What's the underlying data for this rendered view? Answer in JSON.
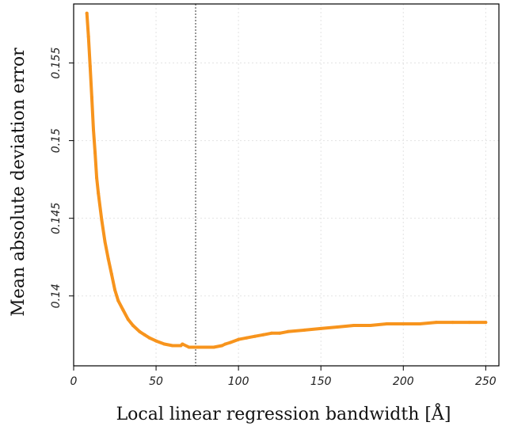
{
  "chart_data": {
    "type": "line",
    "title": "",
    "xlabel": "Local linear regression bandwidth [Å]",
    "ylabel": "Mean absolute deviation error",
    "xlim": [
      0,
      258
    ],
    "ylim": [
      0.1355,
      0.1588
    ],
    "xticks": [
      0,
      50,
      100,
      150,
      200,
      250
    ],
    "xtick_labels": [
      "0",
      "50",
      "100",
      "150",
      "200",
      "250"
    ],
    "yticks": [
      0.14,
      0.145,
      0.15,
      0.155
    ],
    "ytick_labels": [
      "0.14",
      "0.145",
      "0.15",
      "0.155"
    ],
    "grid": true,
    "legend": "none",
    "vline_x": 74,
    "series": [
      {
        "color": "#F7941D",
        "x": [
          8,
          9,
          10,
          11,
          12,
          13,
          14,
          15,
          17,
          19,
          21,
          23,
          25,
          27,
          30,
          33,
          36,
          40,
          43,
          46,
          50,
          55,
          60,
          65,
          66,
          70,
          75,
          80,
          85,
          90,
          92,
          95,
          100,
          105,
          110,
          115,
          120,
          125,
          130,
          140,
          150,
          160,
          170,
          180,
          190,
          200,
          210,
          220,
          230,
          240,
          250
        ],
        "y": [
          0.1582,
          0.1567,
          0.1548,
          0.1528,
          0.1507,
          0.1492,
          0.1476,
          0.1466,
          0.1449,
          0.1435,
          0.1424,
          0.1414,
          0.1404,
          0.1397,
          0.1391,
          0.1385,
          0.1381,
          0.1377,
          0.1375,
          0.1373,
          0.1371,
          0.1369,
          0.1368,
          0.1368,
          0.1369,
          0.1367,
          0.1367,
          0.1367,
          0.1367,
          0.1368,
          0.1369,
          0.137,
          0.1372,
          0.1373,
          0.1374,
          0.1375,
          0.1376,
          0.1376,
          0.1377,
          0.1378,
          0.1379,
          0.138,
          0.1381,
          0.1381,
          0.1382,
          0.1382,
          0.1382,
          0.1383,
          0.1383,
          0.1383,
          0.1383
        ]
      }
    ]
  }
}
